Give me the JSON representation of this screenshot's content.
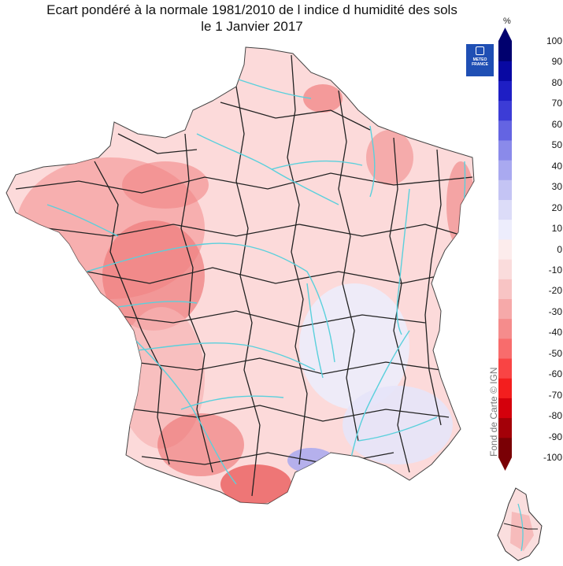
{
  "title": {
    "line1": "Ecart pondéré à la normale 1981/2010 de l indice d humidité des sols",
    "line2": "le 1 Janvier 2017"
  },
  "logo": {
    "line1": "METEO",
    "line2": "FRANCE"
  },
  "credit": "Fond de Carte © IGN",
  "colorbar": {
    "unit": "%",
    "ticks": [
      "100",
      "90",
      "80",
      "70",
      "60",
      "50",
      "40",
      "30",
      "20",
      "10",
      "0",
      "-10",
      "-20",
      "-30",
      "-40",
      "-50",
      "-60",
      "-70",
      "-80",
      "-90",
      "-100"
    ],
    "min": -100,
    "max": 100,
    "colors": [
      "#7a0005",
      "#a30008",
      "#d4000c",
      "#f31e1e",
      "#f94444",
      "#f86c6c",
      "#f58c8c",
      "#f6a9a9",
      "#f8c4c4",
      "#fadcdc",
      "#fcecec",
      "#ededfc",
      "#dcdcf8",
      "#c4c4f4",
      "#a9a9f0",
      "#8a8aea",
      "#6464e2",
      "#3c3cd6",
      "#1e1ec4",
      "#0808a2",
      "#00006e"
    ]
  },
  "map": {
    "variable": "soil moisture index anomaly",
    "land_color": "#fcdada",
    "river_color": "#5ad0dc",
    "border_color": "#222222"
  }
}
